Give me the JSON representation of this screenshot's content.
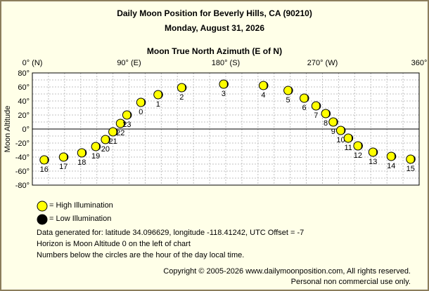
{
  "header": {
    "title": "Daily Moon Position for Beverly Hills, CA (90210)",
    "date": "Monday, August 31, 2026"
  },
  "chart_data": {
    "type": "scatter",
    "title": "Moon True North Azimuth (E of N)",
    "xlabel": "Moon True North Azimuth (E of N)",
    "ylabel": "Moon Altitude",
    "xlim": [
      0,
      360
    ],
    "ylim": [
      -80,
      80
    ],
    "x_ticks": [
      {
        "value": 0,
        "label": "0° (N)"
      },
      {
        "value": 90,
        "label": "90° (E)"
      },
      {
        "value": 180,
        "label": "180° (S)"
      },
      {
        "value": 270,
        "label": "270° (W)"
      },
      {
        "value": 360,
        "label": "360°"
      }
    ],
    "y_ticks": [
      {
        "value": 80,
        "label": "80°"
      },
      {
        "value": 60,
        "label": "60°"
      },
      {
        "value": 40,
        "label": "40°"
      },
      {
        "value": 20,
        "label": "20°"
      },
      {
        "value": 0,
        "label": "0°"
      },
      {
        "value": -20,
        "label": "-20°"
      },
      {
        "value": -40,
        "label": "-40°"
      },
      {
        "value": -60,
        "label": "-60°"
      },
      {
        "value": -80,
        "label": "-80°"
      }
    ],
    "grid": true,
    "points": [
      {
        "hour": "0",
        "azimuth": 101,
        "altitude": 38
      },
      {
        "hour": "1",
        "azimuth": 117,
        "altitude": 49
      },
      {
        "hour": "2",
        "azimuth": 139,
        "altitude": 59
      },
      {
        "hour": "3",
        "azimuth": 178,
        "altitude": 64
      },
      {
        "hour": "4",
        "azimuth": 215,
        "altitude": 62
      },
      {
        "hour": "5",
        "azimuth": 238,
        "altitude": 55
      },
      {
        "hour": "6",
        "azimuth": 253,
        "altitude": 44
      },
      {
        "hour": "7",
        "azimuth": 264,
        "altitude": 33
      },
      {
        "hour": "8",
        "azimuth": 273,
        "altitude": 22
      },
      {
        "hour": "9",
        "azimuth": 280,
        "altitude": 10
      },
      {
        "hour": "10",
        "azimuth": 287,
        "altitude": -2
      },
      {
        "hour": "11",
        "azimuth": 294,
        "altitude": -13
      },
      {
        "hour": "12",
        "azimuth": 303,
        "altitude": -24
      },
      {
        "hour": "13",
        "azimuth": 317,
        "altitude": -33
      },
      {
        "hour": "14",
        "azimuth": 334,
        "altitude": -39
      },
      {
        "hour": "15",
        "azimuth": 352,
        "altitude": -43
      },
      {
        "hour": "16",
        "azimuth": 11,
        "altitude": -44
      },
      {
        "hour": "17",
        "azimuth": 29,
        "altitude": -40
      },
      {
        "hour": "18",
        "azimuth": 46,
        "altitude": -34
      },
      {
        "hour": "19",
        "azimuth": 59,
        "altitude": -25
      },
      {
        "hour": "20",
        "azimuth": 68,
        "altitude": -15
      },
      {
        "hour": "21",
        "azimuth": 75,
        "altitude": -4
      },
      {
        "hour": "22",
        "azimuth": 82,
        "altitude": 8
      },
      {
        "hour": "23",
        "azimuth": 88,
        "altitude": 20
      }
    ]
  },
  "legend": {
    "high": "= High Illumination",
    "low": "= Low Illumination"
  },
  "colors": {
    "high_fill": "#ffff00",
    "low_fill": "#000000",
    "background": "#ffffe8",
    "border": "#8b7d5b"
  },
  "info": {
    "line1": "Data generated for: latitude 34.096629, longitude -118.41242, UTC Offset = -7",
    "line2": "Horizon is Moon Altitude 0 on the left of chart",
    "line3": "Numbers below the circles are the hour of the day local time."
  },
  "footer": {
    "copyright": "Copyright © 2005-2026 www.dailymoonposition.com, All rights reserved.",
    "license": "Personal non commercial use only."
  }
}
